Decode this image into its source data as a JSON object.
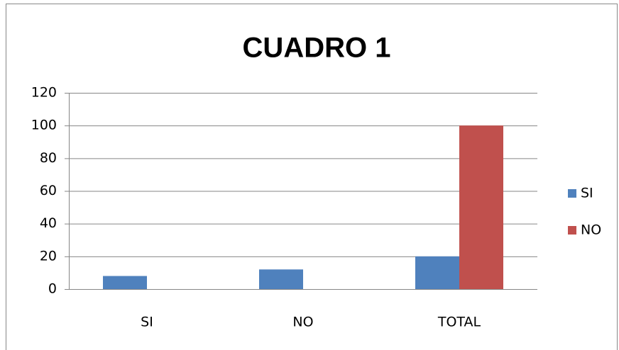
{
  "chart_data": {
    "type": "bar",
    "title": "CUADRO 1",
    "categories": [
      "SI",
      "NO",
      "TOTAL"
    ],
    "series": [
      {
        "name": "SI",
        "color": "#4f81bd",
        "values": [
          8,
          12,
          20
        ]
      },
      {
        "name": "NO",
        "color": "#c0504d",
        "values": [
          0,
          0,
          100
        ]
      }
    ],
    "ylim": [
      0,
      120
    ],
    "yticks": [
      0,
      20,
      40,
      60,
      80,
      100,
      120
    ],
    "grid": true,
    "legend": "right"
  }
}
